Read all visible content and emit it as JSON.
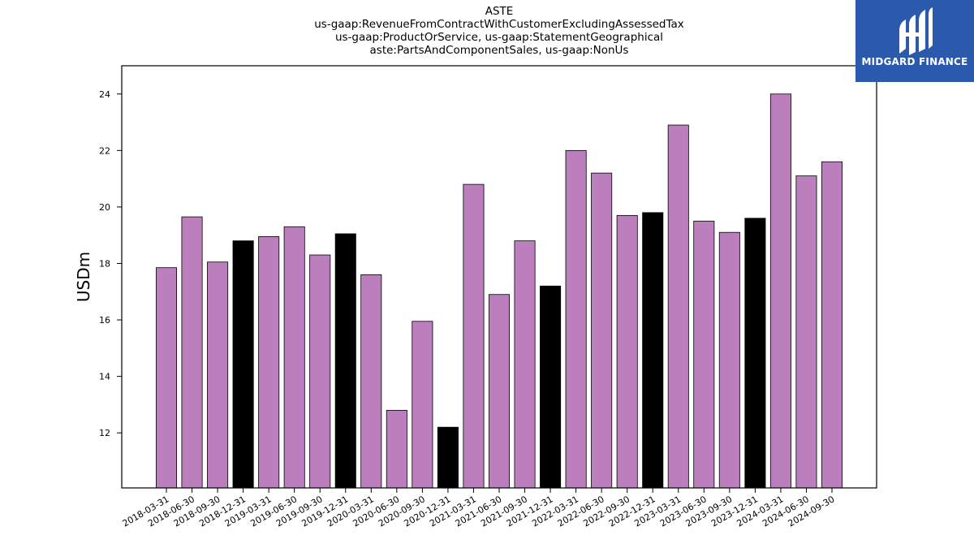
{
  "chart_data": {
    "type": "bar",
    "title_lines": [
      "ASTE",
      "us-gaap:RevenueFromContractWithCustomerExcludingAssessedTax",
      "us-gaap:ProductOrService, us-gaap:StatementGeographical",
      "aste:PartsAndComponentSales, us-gaap:NonUs"
    ],
    "ylabel": "USDm",
    "xlabel": "",
    "ylim": [
      10.05,
      25.0
    ],
    "yticks": [
      "12",
      "14",
      "16",
      "18",
      "20",
      "22",
      "24"
    ],
    "grid": false,
    "categories": [
      "2018-03-31",
      "2018-06-30",
      "2018-09-30",
      "2018-12-31",
      "2019-03-31",
      "2019-06-30",
      "2019-09-30",
      "2019-12-31",
      "2020-03-31",
      "2020-06-30",
      "2020-09-30",
      "2020-12-31",
      "2021-03-31",
      "2021-06-30",
      "2021-09-30",
      "2021-12-31",
      "2022-03-31",
      "2022-06-30",
      "2022-09-30",
      "2022-12-31",
      "2023-03-31",
      "2023-06-30",
      "2023-09-30",
      "2023-12-31",
      "2024-03-31",
      "2024-06-30",
      "2024-09-30"
    ],
    "values": [
      17.85,
      19.65,
      18.05,
      18.8,
      18.95,
      19.3,
      18.3,
      19.05,
      17.6,
      12.8,
      15.95,
      12.2,
      20.8,
      16.9,
      18.8,
      17.2,
      22.0,
      21.2,
      19.7,
      19.8,
      22.9,
      19.5,
      19.1,
      19.6,
      24.0,
      21.1,
      21.6
    ],
    "colors": {
      "quarter": "#bb7fbd",
      "year_end": "#000000",
      "edge": "#000000"
    },
    "year_end_suffix": "-12-31"
  },
  "logo": {
    "text": "MIDGARD FINANCE",
    "background": "#2b5aad"
  }
}
